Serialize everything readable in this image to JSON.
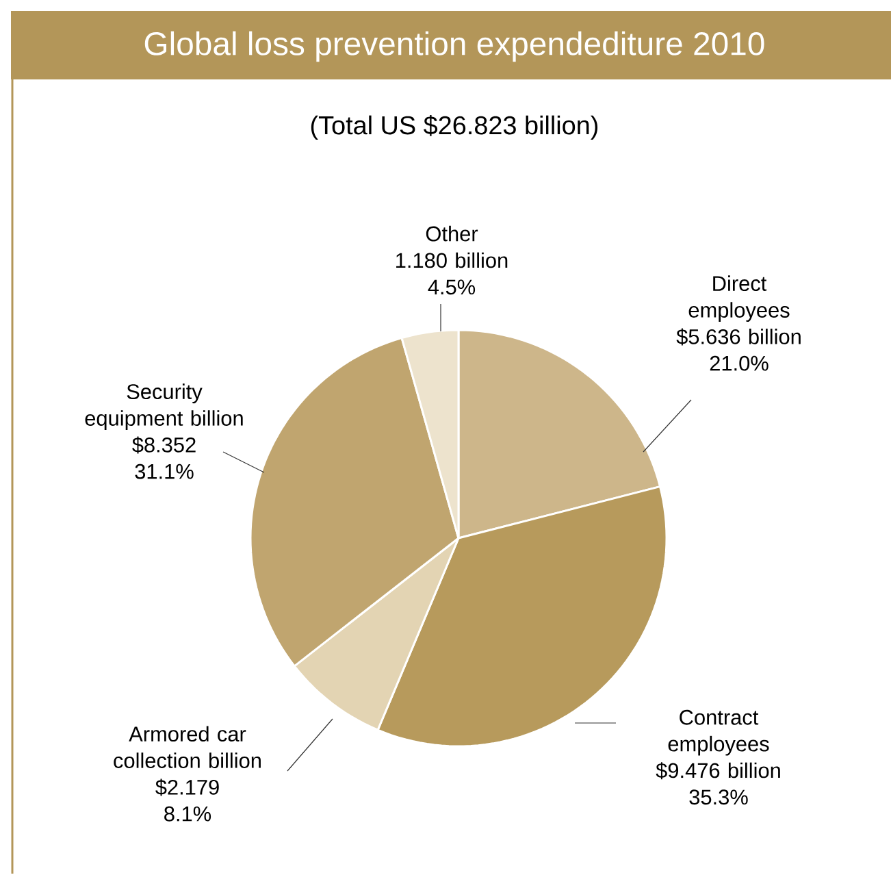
{
  "chart_data": {
    "type": "pie",
    "title": "Global loss prevention expendediture 2010",
    "subtitle": "(Total US $26.823 billion)",
    "categories": [
      "Direct employees",
      "Contract employees",
      "Armored car collection billion",
      "Security equipment billion",
      "Other"
    ],
    "values": [
      5.636,
      9.476,
      2.179,
      8.352,
      1.18
    ],
    "value_labels": [
      "$5.636 billion",
      "$9.476 billion",
      "$2.179",
      "$8.352",
      "1.180 billion"
    ],
    "annotations": [
      "21.0%",
      "35.3%",
      "8.1%",
      "31.1%",
      "4.5%"
    ],
    "colors": [
      "#cdb68a",
      "#b79a5c",
      "#e3d4b3",
      "#c0a56f",
      "#ede3cd"
    ]
  }
}
